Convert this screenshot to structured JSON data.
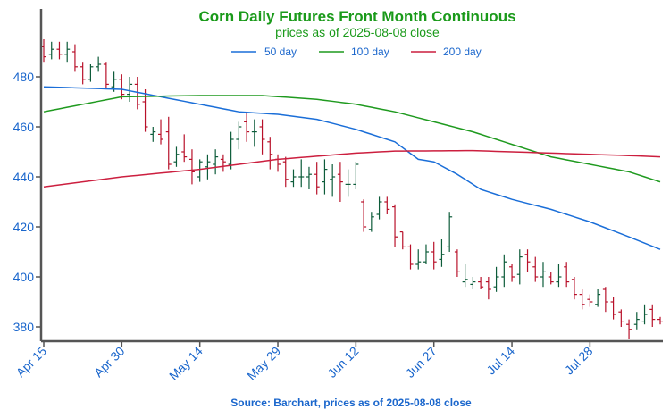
{
  "chart_data": {
    "type": "ohlc",
    "title": "Corn Daily Futures Front Month Continuous",
    "subtitle": "prices as of 2025-08-08 close",
    "source": "Source: Barchart, prices as of 2025-08-08 close",
    "xlabel": "",
    "ylabel": "",
    "ylim": [
      376,
      497
    ],
    "yticks": [
      380,
      400,
      420,
      440,
      460,
      480
    ],
    "xtick_labels": [
      {
        "label": "Apr 15",
        "index": 0
      },
      {
        "label": "Apr 30",
        "index": 10
      },
      {
        "label": "May 14",
        "index": 20
      },
      {
        "label": "May 29",
        "index": 30
      },
      {
        "label": "Jun 12",
        "index": 40
      },
      {
        "label": "Jun 27",
        "index": 50
      },
      {
        "label": "Jul 14",
        "index": 60
      },
      {
        "label": "Jul 28",
        "index": 70
      }
    ],
    "n_days": 80,
    "legend": {
      "placement": "top-center"
    },
    "colors": {
      "up": "#0d5c3a",
      "down": "#b8112a",
      "ma50": "#1a6ed8",
      "ma100": "#1f9a1f",
      "ma200": "#cc1f3f",
      "axis": "#555555",
      "text": "#1a66cc",
      "title": "#1a9a1a"
    },
    "ohlc": [
      [
        492,
        495,
        486,
        488
      ],
      [
        489,
        494,
        487,
        491
      ],
      [
        491,
        494,
        487,
        489
      ],
      [
        489,
        494,
        486,
        491
      ],
      [
        490,
        493,
        482,
        484
      ],
      [
        484,
        486,
        477,
        479
      ],
      [
        479,
        485,
        478,
        484
      ],
      [
        484,
        488,
        482,
        485
      ],
      [
        485,
        486,
        475,
        477
      ],
      [
        476,
        482,
        474,
        479
      ],
      [
        479,
        481,
        471,
        473
      ],
      [
        473,
        480,
        470,
        477
      ],
      [
        477,
        480,
        467,
        469
      ],
      [
        470,
        475,
        458,
        460
      ],
      [
        457,
        460,
        454,
        458
      ],
      [
        457,
        463,
        453,
        455
      ],
      [
        458,
        464,
        443,
        445
      ],
      [
        446,
        452,
        444,
        449
      ],
      [
        450,
        457,
        446,
        448
      ],
      [
        447,
        451,
        437,
        442
      ],
      [
        440,
        447,
        438,
        446
      ],
      [
        444,
        449,
        439,
        446
      ],
      [
        445,
        451,
        441,
        448
      ],
      [
        447,
        449,
        442,
        446
      ],
      [
        445,
        458,
        443,
        455
      ],
      [
        455,
        462,
        451,
        460
      ],
      [
        462,
        466,
        454,
        458
      ],
      [
        458,
        463,
        452,
        458
      ],
      [
        460,
        463,
        449,
        455
      ],
      [
        454,
        456,
        443,
        449
      ],
      [
        447,
        449,
        442,
        445
      ],
      [
        446,
        448,
        436,
        439
      ],
      [
        438,
        443,
        436,
        440
      ],
      [
        440,
        447,
        436,
        440
      ],
      [
        440,
        444,
        435,
        441
      ],
      [
        441,
        446,
        433,
        436
      ],
      [
        438,
        447,
        433,
        443
      ],
      [
        439,
        445,
        432,
        440
      ],
      [
        441,
        446,
        430,
        438
      ],
      [
        437,
        443,
        432,
        437
      ],
      [
        437,
        446,
        435,
        445
      ],
      [
        430,
        431,
        418,
        420
      ],
      [
        419,
        426,
        418,
        424
      ],
      [
        425,
        432,
        423,
        430
      ],
      [
        430,
        432,
        425,
        427
      ],
      [
        428,
        429,
        412,
        416
      ],
      [
        418,
        418,
        411,
        412
      ],
      [
        412,
        413,
        403,
        405
      ],
      [
        405,
        411,
        403,
        406
      ],
      [
        406,
        413,
        405,
        410
      ],
      [
        410,
        414,
        403,
        406
      ],
      [
        407,
        415,
        404,
        409
      ],
      [
        412,
        426,
        410,
        424
      ],
      [
        410,
        411,
        400,
        402
      ],
      [
        398,
        405,
        396,
        399
      ],
      [
        397,
        400,
        395,
        398
      ],
      [
        398,
        400,
        395,
        396
      ],
      [
        398,
        400,
        391,
        395
      ],
      [
        396,
        404,
        394,
        400
      ],
      [
        400,
        409,
        396,
        406
      ],
      [
        404,
        405,
        398,
        400
      ],
      [
        401,
        411,
        397,
        408
      ],
      [
        409,
        411,
        402,
        406
      ],
      [
        404,
        408,
        398,
        400
      ],
      [
        400,
        406,
        396,
        402
      ],
      [
        400,
        402,
        397,
        398
      ],
      [
        398,
        405,
        396,
        400
      ],
      [
        404,
        406,
        396,
        398
      ],
      [
        399,
        400,
        391,
        393
      ],
      [
        393,
        395,
        387,
        389
      ],
      [
        391,
        393,
        388,
        390
      ],
      [
        389,
        395,
        388,
        393
      ],
      [
        395,
        396,
        386,
        390
      ],
      [
        390,
        392,
        383,
        385
      ],
      [
        386,
        387,
        380,
        382
      ],
      [
        381,
        383,
        375,
        379
      ],
      [
        381,
        386,
        379,
        383
      ],
      [
        382,
        389,
        381,
        385
      ],
      [
        387,
        389,
        380,
        383
      ],
      [
        383,
        384,
        381,
        382
      ]
    ],
    "series": [
      {
        "name": "50 day",
        "color": "#1a6ed8",
        "points": [
          [
            0,
            476
          ],
          [
            10,
            475
          ],
          [
            20,
            469
          ],
          [
            25,
            466
          ],
          [
            30,
            465
          ],
          [
            35,
            463
          ],
          [
            40,
            459
          ],
          [
            45,
            454
          ],
          [
            48,
            447
          ],
          [
            50,
            446
          ],
          [
            53,
            441
          ],
          [
            56,
            435
          ],
          [
            60,
            431
          ],
          [
            65,
            427
          ],
          [
            70,
            422
          ],
          [
            75,
            416
          ],
          [
            79,
            411
          ]
        ]
      },
      {
        "name": "100 day",
        "color": "#1f9a1f",
        "points": [
          [
            0,
            466
          ],
          [
            10,
            472
          ],
          [
            20,
            472.5
          ],
          [
            28,
            472.5
          ],
          [
            35,
            471
          ],
          [
            40,
            469
          ],
          [
            45,
            466
          ],
          [
            50,
            462
          ],
          [
            55,
            458
          ],
          [
            60,
            453
          ],
          [
            65,
            448
          ],
          [
            70,
            445
          ],
          [
            75,
            442
          ],
          [
            79,
            438
          ]
        ]
      },
      {
        "name": "200 day",
        "color": "#cc1f3f",
        "points": [
          [
            0,
            436
          ],
          [
            10,
            440
          ],
          [
            20,
            443
          ],
          [
            30,
            447
          ],
          [
            40,
            449.5
          ],
          [
            45,
            450.3
          ],
          [
            50,
            450.4
          ],
          [
            55,
            450.5
          ],
          [
            60,
            450
          ],
          [
            65,
            449.5
          ],
          [
            70,
            449
          ],
          [
            75,
            448.5
          ],
          [
            79,
            448
          ]
        ]
      }
    ]
  }
}
